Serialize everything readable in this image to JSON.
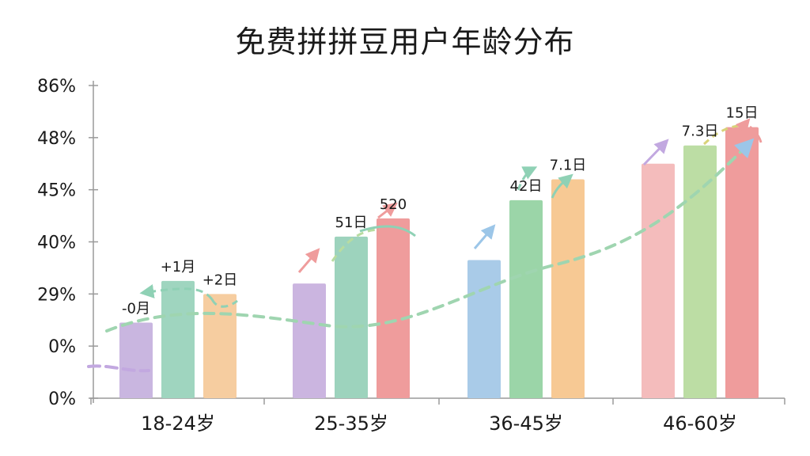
{
  "chart_data": {
    "type": "bar",
    "title": "免费拼拼豆用户年龄分布",
    "xlabel": "",
    "ylabel": "",
    "y_tick_labels": [
      "0%",
      "0%",
      "29%",
      "40%",
      "45%",
      "48%",
      "86%"
    ],
    "categories": [
      "18-24岁",
      "25-35岁",
      "36-45岁",
      "46-60岁"
    ],
    "grid": false,
    "legend": "none",
    "groups": [
      {
        "category": "18-24岁",
        "bars": [
          {
            "level": 1.45,
            "color": "#c9b6e0",
            "label": "-0月"
          },
          {
            "level": 2.25,
            "color": "#9fd5bf",
            "label": "+1月"
          },
          {
            "level": 2.0,
            "color": "#f6cda0",
            "label": "+2日"
          }
        ]
      },
      {
        "category": "25-35岁",
        "bars": [
          {
            "level": 2.2,
            "color": "#cbb5e0",
            "label": ""
          },
          {
            "level": 3.1,
            "color": "#9dd3bd",
            "label": "51日"
          },
          {
            "level": 3.45,
            "color": "#ef9c9c",
            "label": "520"
          }
        ]
      },
      {
        "category": "36-45岁",
        "bars": [
          {
            "level": 2.65,
            "color": "#a9cbe8",
            "label": ""
          },
          {
            "level": 3.8,
            "color": "#9bd5a8",
            "label": "42日"
          },
          {
            "level": 4.2,
            "color": "#f7c994",
            "label": "7.1日"
          }
        ]
      },
      {
        "category": "46-60岁",
        "bars": [
          {
            "level": 4.5,
            "color": "#f4bcbc",
            "label": ""
          },
          {
            "level": 4.85,
            "color": "#bcdda4",
            "label": "7.3日"
          },
          {
            "level": 5.2,
            "color": "#ef9c9c",
            "label": "15日"
          }
        ]
      }
    ]
  }
}
